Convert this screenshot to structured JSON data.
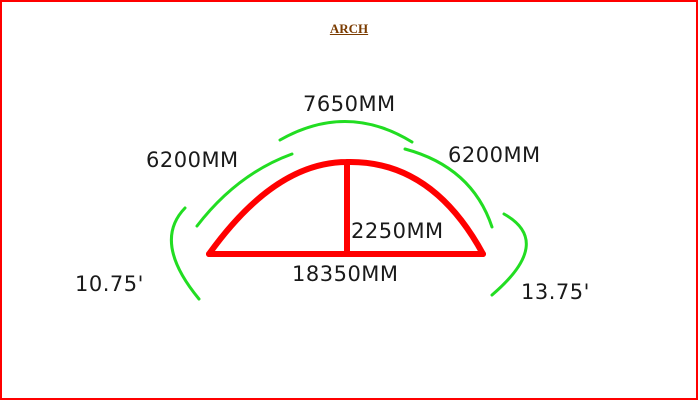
{
  "title": "ARCH",
  "colors": {
    "border": "#ff0000",
    "arch": "#ff0000",
    "arc_guides": "#22dd22",
    "text": "#1a1a1a",
    "title": "#7a3b00"
  },
  "dimensions": {
    "top_arc": "7650MM",
    "upper_left_arc": "6200MM",
    "upper_right_arc": "6200MM",
    "rise": "2250MM",
    "span": "18350MM",
    "lower_left_arc": "10.75'",
    "lower_right_arc": "13.75'"
  }
}
